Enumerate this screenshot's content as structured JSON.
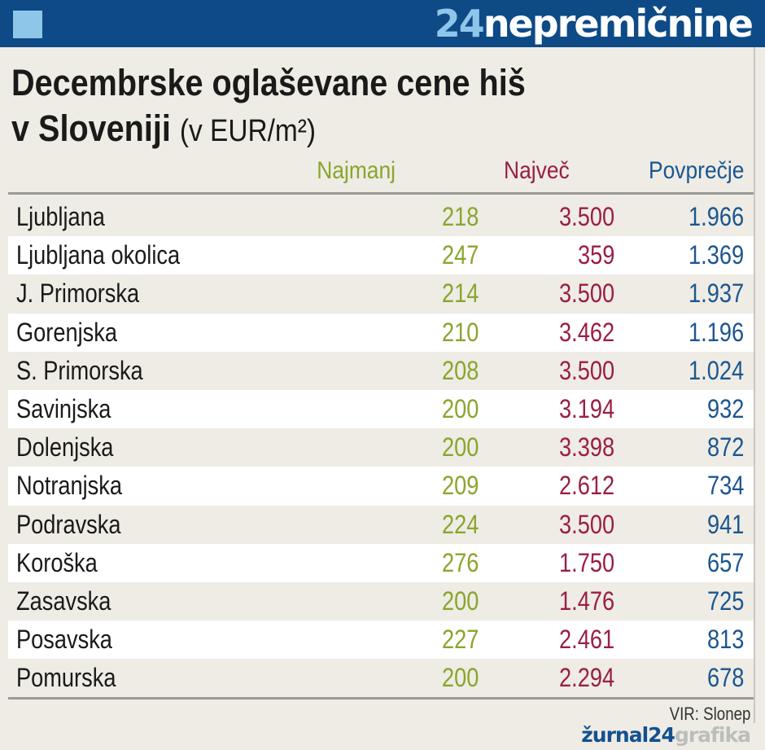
{
  "header": {
    "brand_number": "24",
    "brand_word": "nepremičnine",
    "accent": "#0d4a86"
  },
  "title": {
    "line1": "Decembrske oglaševane cene hiš",
    "line2": "v Sloveniji",
    "unit": "(v EUR/m²)"
  },
  "columns": {
    "min": "Najmanj",
    "max": "Največ",
    "avg": "Povprečje"
  },
  "colors": {
    "min": "#8aa52c",
    "max": "#9b1e42",
    "avg": "#1b5690"
  },
  "chart_data": {
    "type": "table",
    "title": "Decembrske oglaševane cene hiš v Sloveniji (v EUR/m²)",
    "headers": [
      "",
      "Najmanj",
      "Največ",
      "Povprečje"
    ],
    "rows": [
      {
        "region": "Ljubljana",
        "min": "218",
        "max": "3.500",
        "avg": "1.966"
      },
      {
        "region": "Ljubljana okolica",
        "min": "247",
        "max": "359",
        "avg": "1.369"
      },
      {
        "region": "J. Primorska",
        "min": "214",
        "max": "3.500",
        "avg": "1.937"
      },
      {
        "region": "Gorenjska",
        "min": "210",
        "max": "3.462",
        "avg": "1.196"
      },
      {
        "region": "S. Primorska",
        "min": "208",
        "max": "3.500",
        "avg": "1.024"
      },
      {
        "region": "Savinjska",
        "min": "200",
        "max": "3.194",
        "avg": "932"
      },
      {
        "region": "Dolenjska",
        "min": "200",
        "max": "3.398",
        "avg": "872"
      },
      {
        "region": "Notranjska",
        "min": "209",
        "max": "2.612",
        "avg": "734"
      },
      {
        "region": "Podravska",
        "min": "224",
        "max": "3.500",
        "avg": "941"
      },
      {
        "region": "Koroška",
        "min": "276",
        "max": "1.750",
        "avg": "657"
      },
      {
        "region": "Zasavska",
        "min": "200",
        "max": "1.476",
        "avg": "725"
      },
      {
        "region": "Posavska",
        "min": "227",
        "max": "2.461",
        "avg": "813"
      },
      {
        "region": "Pomurska",
        "min": "200",
        "max": "2.294",
        "avg": "678"
      }
    ]
  },
  "footer": {
    "source": "VIR: Slonep",
    "logo_a": "žurnal24",
    "logo_b": "grafika"
  }
}
